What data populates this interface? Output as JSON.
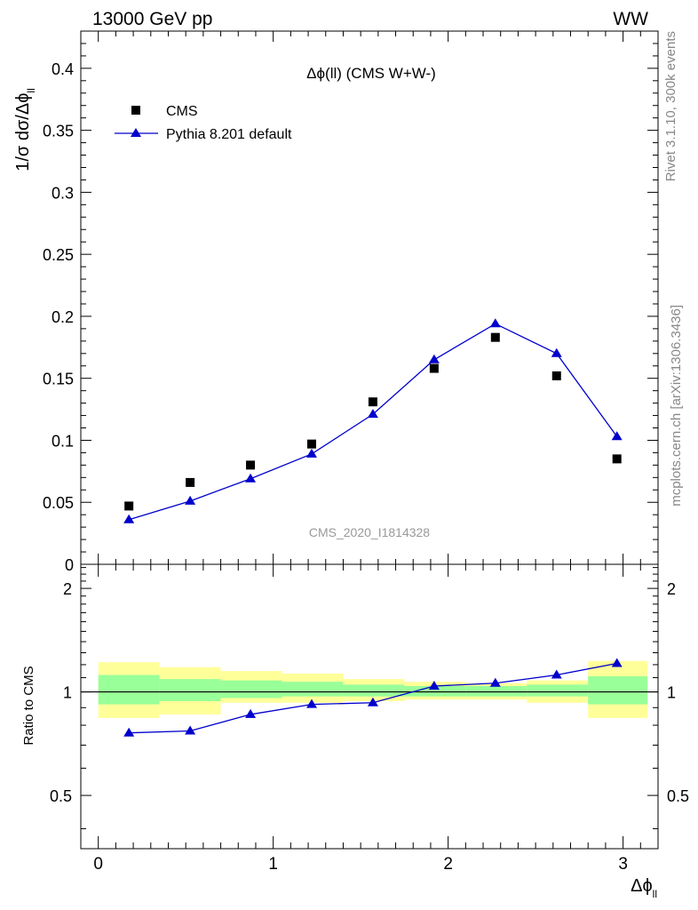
{
  "header": {
    "left": "13000 GeV pp",
    "right": "WW"
  },
  "side_labels": {
    "top": "Rivet 3.1.10,  300k events",
    "bottom": "mcplots.cern.ch [arXiv:1306.3436]"
  },
  "chart_data": [
    {
      "type": "scatter",
      "panel": "main",
      "title": "Δϕ(ll) (CMS W+W-)",
      "watermark": "CMS_2020_I1814328",
      "ylabel": "1/σ dσ/Δϕ_ll",
      "xlim": [
        -0.1,
        3.2
      ],
      "ylim": [
        0,
        0.43
      ],
      "yticks": [
        0,
        0.05,
        0.1,
        0.15,
        0.2,
        0.25,
        0.3,
        0.35,
        0.4
      ],
      "ytick_labels": [
        "0",
        "0.05",
        "0.1",
        "0.15",
        "0.2",
        "0.25",
        "0.3",
        "0.35",
        "0.4"
      ],
      "legend": "top-left",
      "colors": {
        "data": "#000000",
        "mc": "#0000cc"
      },
      "series": [
        {
          "name": "CMS",
          "style": "square-marker",
          "x": [
            0.175,
            0.525,
            0.87,
            1.22,
            1.57,
            1.92,
            2.27,
            2.62,
            2.965
          ],
          "y": [
            0.047,
            0.066,
            0.08,
            0.097,
            0.131,
            0.158,
            0.183,
            0.152,
            0.085
          ]
        },
        {
          "name": "Pythia 8.201 default",
          "style": "line-triangle",
          "x": [
            0.175,
            0.525,
            0.87,
            1.22,
            1.57,
            1.92,
            2.27,
            2.62,
            2.965
          ],
          "y": [
            0.036,
            0.051,
            0.069,
            0.089,
            0.121,
            0.165,
            0.194,
            0.17,
            0.103
          ]
        }
      ]
    },
    {
      "type": "line",
      "panel": "ratio",
      "ylabel": "Ratio to CMS",
      "xlabel": "Δϕ_ll",
      "xlim": [
        -0.1,
        3.2
      ],
      "ylim": [
        0.35,
        2.35
      ],
      "yticks": [
        0.5,
        1,
        2
      ],
      "ytick_labels": [
        "0.5",
        "1",
        "2"
      ],
      "xticks": [
        0,
        1,
        2,
        3
      ],
      "xtick_labels": [
        "0",
        "1",
        "2",
        "3"
      ],
      "colors": {
        "band_outer": "#ffff99",
        "band_inner": "#99ff99",
        "mc": "#0000cc",
        "reference": "#000000"
      },
      "bins": [
        {
          "lo": 0.0,
          "hi": 0.35,
          "inner": [
            0.92,
            1.12
          ],
          "outer": [
            0.84,
            1.22
          ]
        },
        {
          "lo": 0.35,
          "hi": 0.7,
          "inner": [
            0.94,
            1.09
          ],
          "outer": [
            0.86,
            1.18
          ]
        },
        {
          "lo": 0.7,
          "hi": 1.05,
          "inner": [
            0.96,
            1.08
          ],
          "outer": [
            0.93,
            1.15
          ]
        },
        {
          "lo": 1.05,
          "hi": 1.4,
          "inner": [
            0.97,
            1.07
          ],
          "outer": [
            0.93,
            1.13
          ]
        },
        {
          "lo": 1.4,
          "hi": 1.75,
          "inner": [
            0.97,
            1.05
          ],
          "outer": [
            0.94,
            1.09
          ]
        },
        {
          "lo": 1.75,
          "hi": 2.1,
          "inner": [
            0.97,
            1.04
          ],
          "outer": [
            0.95,
            1.07
          ]
        },
        {
          "lo": 2.1,
          "hi": 2.45,
          "inner": [
            0.97,
            1.04
          ],
          "outer": [
            0.95,
            1.06
          ]
        },
        {
          "lo": 2.45,
          "hi": 2.8,
          "inner": [
            0.97,
            1.05
          ],
          "outer": [
            0.93,
            1.08
          ]
        },
        {
          "lo": 2.8,
          "hi": 3.14,
          "inner": [
            0.92,
            1.11
          ],
          "outer": [
            0.84,
            1.23
          ]
        }
      ],
      "series": [
        {
          "name": "Pythia 8.201 default",
          "x": [
            0.175,
            0.525,
            0.87,
            1.22,
            1.57,
            1.92,
            2.27,
            2.62,
            2.965
          ],
          "y": [
            0.76,
            0.77,
            0.86,
            0.92,
            0.93,
            1.04,
            1.06,
            1.12,
            1.21
          ]
        }
      ]
    }
  ]
}
